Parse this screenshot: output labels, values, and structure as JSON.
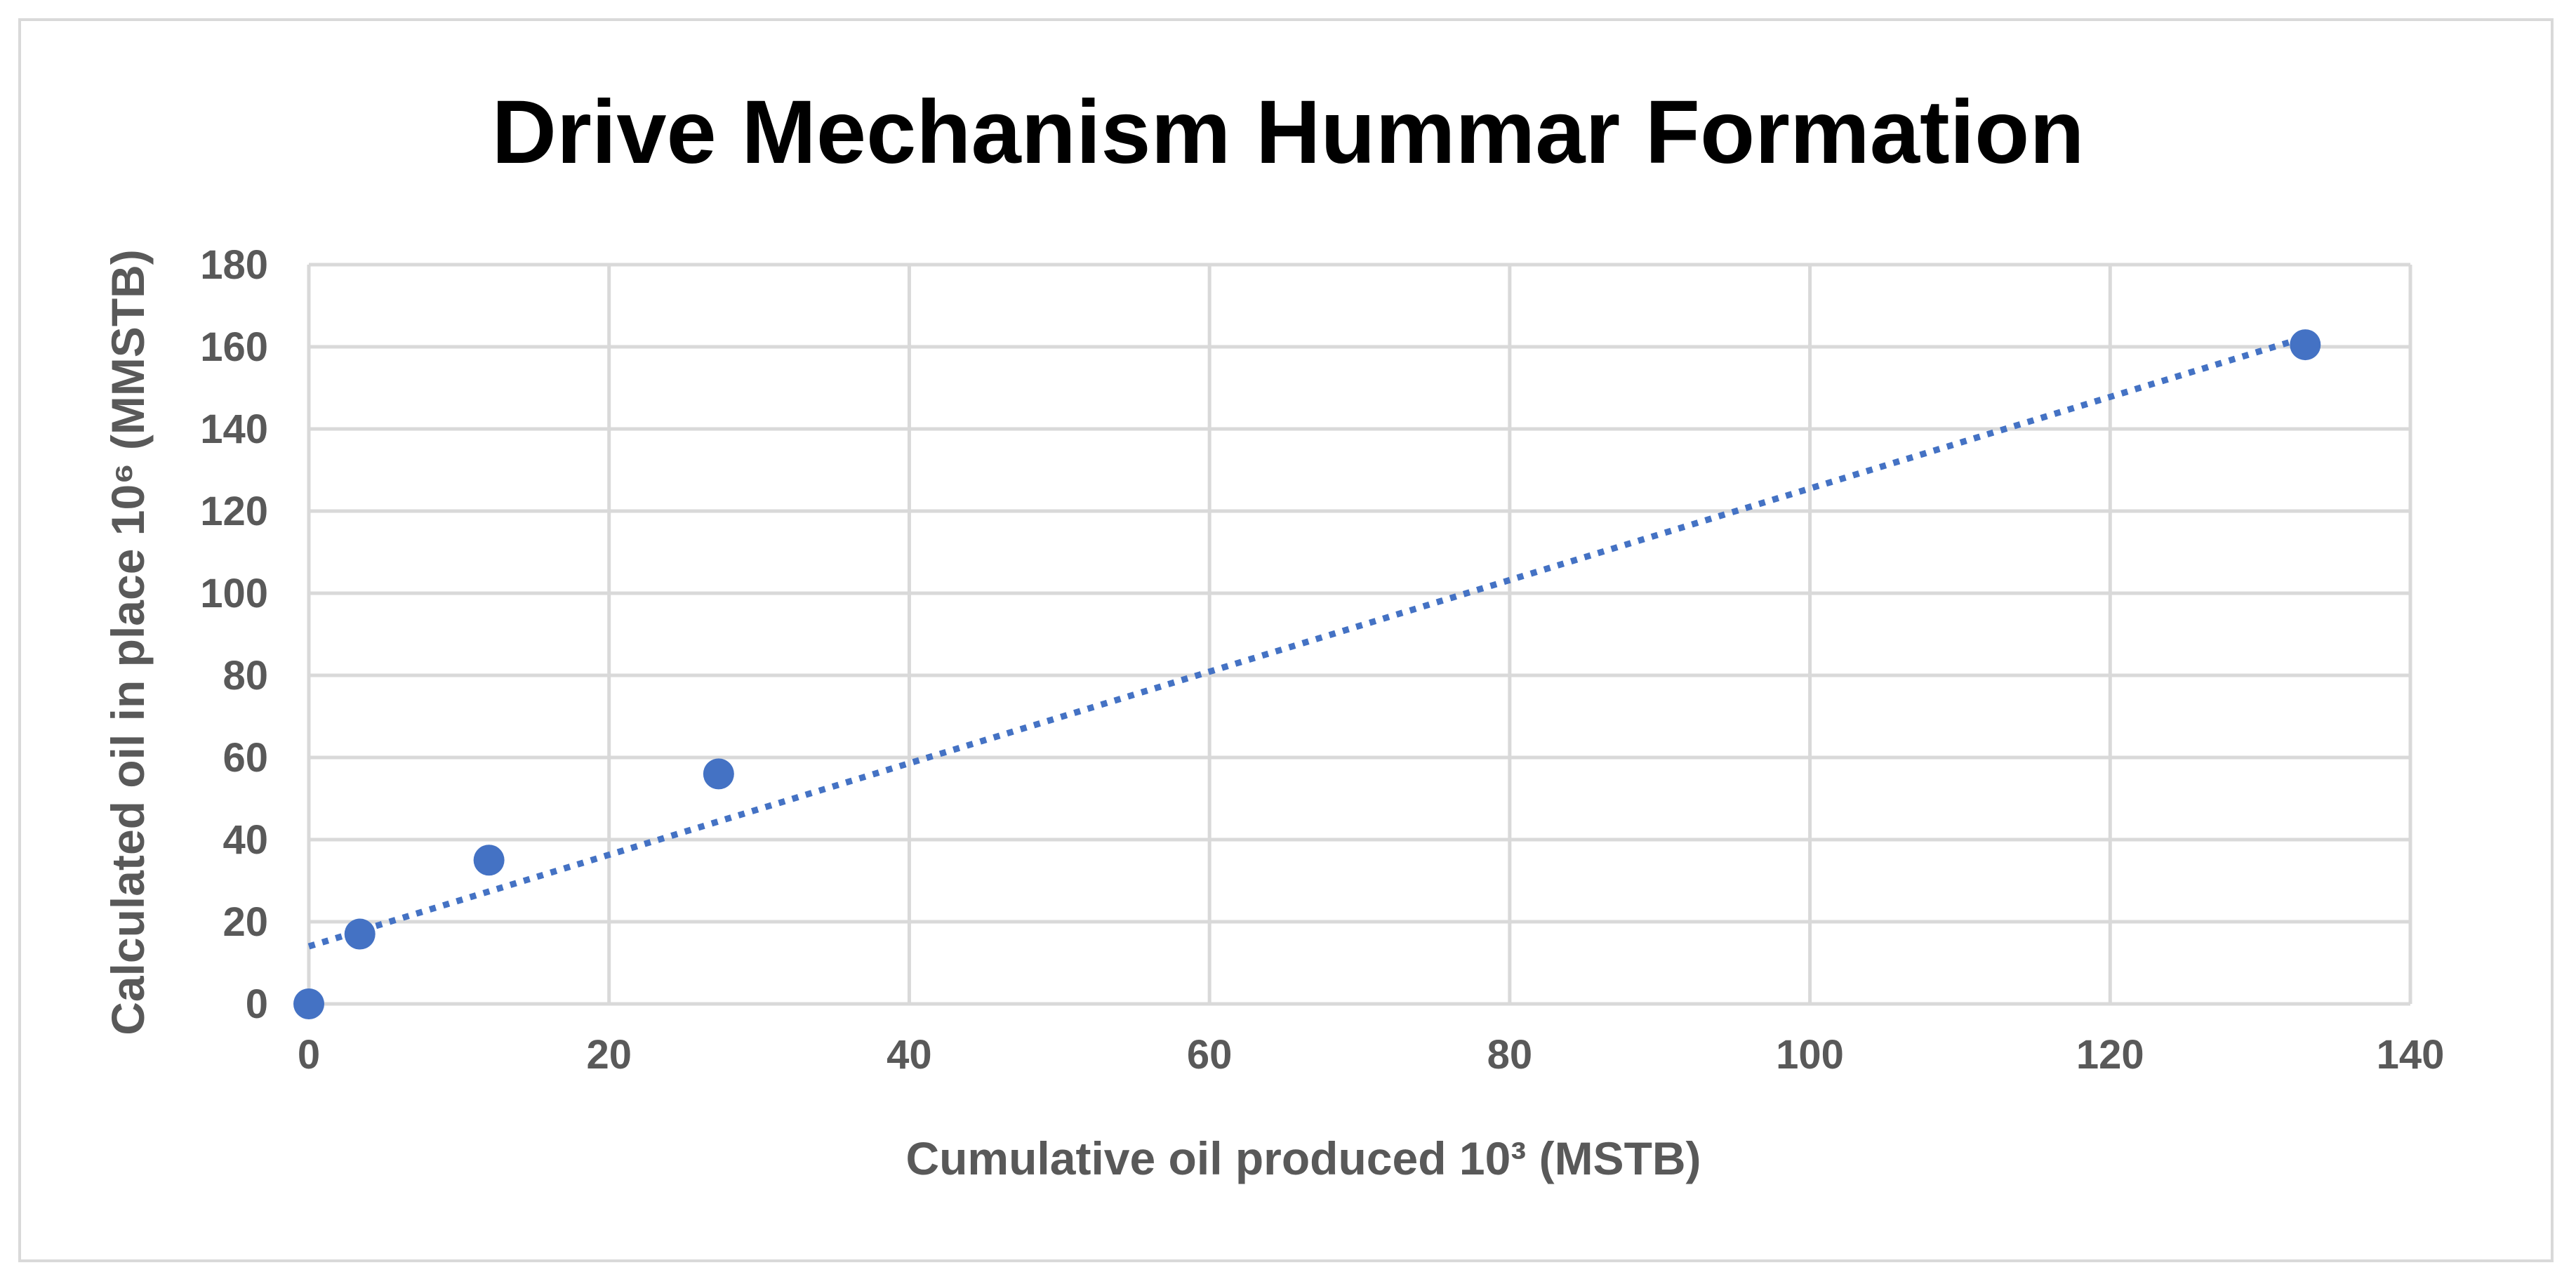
{
  "chart_data": {
    "type": "scatter",
    "title": "Drive Mechanism Hummar Formation",
    "xlabel": "Cumulative oil produced 10³ (MSTB)",
    "ylabel": "Calculated oil in place 10⁶ (MMSTB)",
    "xlim": [
      0,
      140
    ],
    "ylim": [
      0,
      180
    ],
    "x_ticks": [
      0,
      20,
      40,
      60,
      80,
      100,
      120,
      140
    ],
    "y_ticks": [
      0,
      20,
      40,
      60,
      80,
      100,
      120,
      140,
      160,
      180
    ],
    "grid": true,
    "legend": false,
    "series": [
      {
        "color": "#4472c4",
        "points": [
          {
            "x": 0,
            "y": 0
          },
          {
            "x": 3.4,
            "y": 17
          },
          {
            "x": 12,
            "y": 35
          },
          {
            "x": 27.3,
            "y": 56
          },
          {
            "x": 133,
            "y": 160.5
          }
        ]
      }
    ],
    "trendline": {
      "type": "linear",
      "style": "dotted",
      "color": "#4472c4",
      "x_range": [
        0,
        133
      ],
      "intercept": 14,
      "slope": 1.115
    }
  }
}
